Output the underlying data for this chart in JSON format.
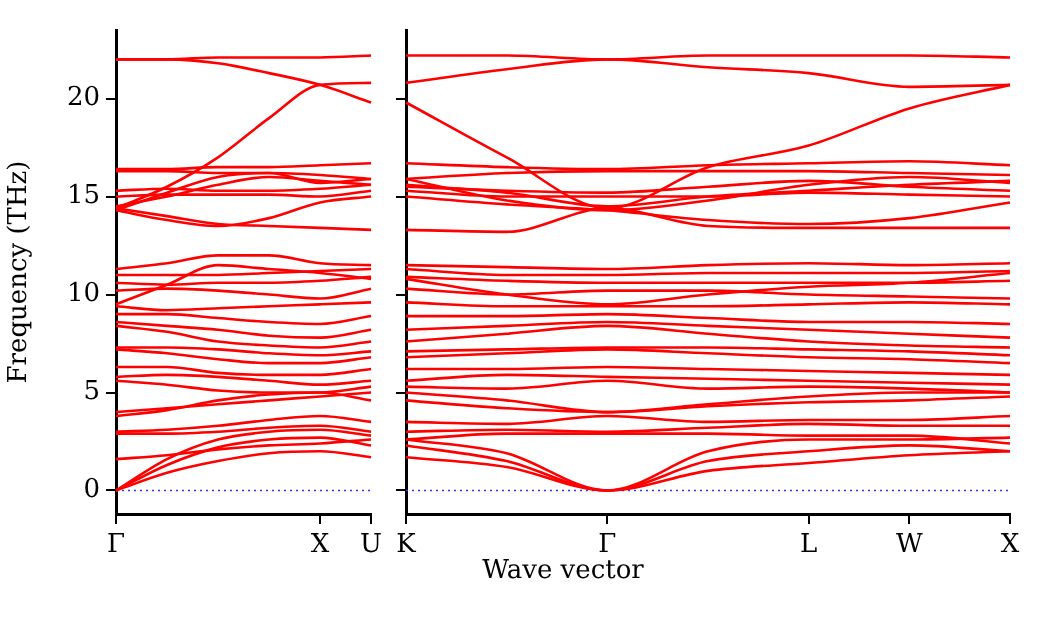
{
  "chart_data": [
    {
      "type": "line",
      "ylabel": "Frequency (THz)",
      "categories": [
        "Γ",
        null,
        null,
        null,
        "X",
        "U"
      ],
      "ylim": [
        -1.2,
        23.5
      ],
      "yticks": [
        0,
        5,
        10,
        15,
        20
      ],
      "marker": "none",
      "line_style": "solid",
      "ref_lines": [
        {
          "axis": "y",
          "value": 0,
          "color": "#3333ff",
          "line_style": "dotted"
        }
      ],
      "series": [
        {
          "color": "#ff0000",
          "values": [
            0,
            0.9,
            1.5,
            1.9,
            2.0,
            1.7
          ]
        },
        {
          "color": "#ff0000",
          "values": [
            0,
            1.3,
            2.2,
            2.6,
            2.7,
            2.3
          ]
        },
        {
          "color": "#ff0000",
          "values": [
            0,
            1.6,
            2.6,
            3.0,
            3.1,
            2.8
          ]
        },
        {
          "color": "#ff0000",
          "values": [
            1.6,
            1.8,
            2.1,
            2.3,
            2.4,
            2.6
          ]
        },
        {
          "color": "#ff0000",
          "values": [
            2.9,
            2.9,
            3.0,
            3.2,
            3.3,
            3.0
          ]
        },
        {
          "color": "#ff0000",
          "values": [
            3.0,
            3.1,
            3.3,
            3.6,
            3.8,
            3.5
          ]
        },
        {
          "color": "#ff0000",
          "values": [
            3.8,
            4.1,
            4.6,
            4.9,
            5.0,
            4.6
          ]
        },
        {
          "color": "#ff0000",
          "values": [
            4.0,
            4.2,
            4.4,
            4.6,
            4.8,
            5.0
          ]
        },
        {
          "color": "#ff0000",
          "values": [
            5.6,
            5.4,
            5.1,
            5.0,
            5.0,
            5.3
          ]
        },
        {
          "color": "#ff0000",
          "values": [
            5.8,
            5.9,
            5.8,
            5.6,
            5.4,
            5.6
          ]
        },
        {
          "color": "#ff0000",
          "values": [
            6.3,
            6.3,
            6.0,
            5.9,
            5.9,
            6.2
          ]
        },
        {
          "color": "#ff0000",
          "values": [
            7.2,
            7.0,
            6.7,
            6.5,
            6.5,
            6.8
          ]
        },
        {
          "color": "#ff0000",
          "values": [
            7.3,
            7.3,
            7.2,
            7.0,
            6.9,
            7.1
          ]
        },
        {
          "color": "#ff0000",
          "values": [
            8.4,
            8.1,
            7.6,
            7.4,
            7.3,
            7.6
          ]
        },
        {
          "color": "#ff0000",
          "values": [
            8.6,
            8.4,
            8.2,
            7.9,
            7.8,
            8.2
          ]
        },
        {
          "color": "#ff0000",
          "values": [
            9.0,
            9.0,
            8.8,
            8.6,
            8.5,
            8.9
          ]
        },
        {
          "color": "#ff0000",
          "values": [
            9.4,
            9.2,
            9.3,
            9.4,
            9.5,
            9.6
          ]
        },
        {
          "color": "#ff0000",
          "values": [
            10.2,
            10.3,
            10.2,
            10.0,
            9.8,
            10.3
          ]
        },
        {
          "color": "#ff0000",
          "values": [
            10.6,
            10.5,
            10.6,
            10.6,
            10.7,
            10.9
          ]
        },
        {
          "color": "#ff0000",
          "values": [
            11.0,
            11.0,
            11.0,
            11.1,
            11.2,
            11.3
          ]
        },
        {
          "color": "#ff0000",
          "values": [
            11.3,
            11.6,
            12.0,
            12.0,
            11.6,
            11.5
          ]
        },
        {
          "color": "#ff0000",
          "values": [
            9.5,
            10.5,
            11.5,
            11.3,
            11.1,
            10.8
          ]
        },
        {
          "color": "#ff0000",
          "values": [
            14.4,
            14.0,
            13.6,
            13.5,
            13.4,
            13.3
          ]
        },
        {
          "color": "#ff0000",
          "values": [
            14.3,
            13.8,
            13.5,
            13.9,
            14.7,
            15.0
          ]
        },
        {
          "color": "#ff0000",
          "values": [
            14.5,
            15.0,
            15.6,
            16.0,
            15.8,
            15.6
          ]
        },
        {
          "color": "#ff0000",
          "values": [
            15.0,
            15.1,
            15.1,
            15.1,
            15.0,
            15.3
          ]
        },
        {
          "color": "#ff0000",
          "values": [
            15.3,
            15.4,
            15.3,
            15.3,
            15.4,
            15.6
          ]
        },
        {
          "color": "#ff0000",
          "values": [
            14.3,
            15.2,
            16.0,
            16.2,
            15.7,
            15.9
          ]
        },
        {
          "color": "#ff0000",
          "values": [
            16.3,
            16.3,
            16.2,
            16.2,
            16.1,
            15.9
          ]
        },
        {
          "color": "#ff0000",
          "values": [
            16.4,
            16.4,
            16.5,
            16.5,
            16.6,
            16.7
          ]
        },
        {
          "color": "#ff0000",
          "values": [
            14.4,
            15.5,
            17.0,
            19.0,
            20.7,
            20.8
          ]
        },
        {
          "color": "#ff0000",
          "values": [
            22.0,
            22.0,
            21.8,
            21.3,
            20.7,
            19.8
          ]
        },
        {
          "color": "#ff0000",
          "values": [
            22.0,
            22.0,
            22.1,
            22.1,
            22.1,
            22.2
          ]
        }
      ]
    },
    {
      "type": "line",
      "xlabel": "Wave vector",
      "categories": [
        "K",
        null,
        "Γ",
        null,
        "L",
        "W",
        "X"
      ],
      "ylim": [
        -1.2,
        23.5
      ],
      "yticks": [
        0,
        5,
        10,
        15,
        20
      ],
      "tick_labels": "x",
      "marker": "none",
      "line_style": "solid",
      "ref_lines": [
        {
          "axis": "y",
          "value": 0,
          "color": "#3333ff",
          "line_style": "dotted"
        }
      ],
      "series": [
        {
          "color": "#ff0000",
          "values": [
            1.7,
            1.2,
            0,
            1.0,
            1.4,
            1.8,
            2.0
          ]
        },
        {
          "color": "#ff0000",
          "values": [
            2.3,
            1.5,
            0,
            1.5,
            2.0,
            2.3,
            2.0
          ]
        },
        {
          "color": "#ff0000",
          "values": [
            2.6,
            1.9,
            0,
            2.0,
            2.6,
            2.6,
            2.7
          ]
        },
        {
          "color": "#ff0000",
          "values": [
            2.6,
            2.9,
            2.9,
            2.9,
            2.8,
            2.8,
            2.4
          ]
        },
        {
          "color": "#ff0000",
          "values": [
            3.0,
            3.1,
            3.0,
            3.2,
            3.4,
            3.3,
            3.3
          ]
        },
        {
          "color": "#ff0000",
          "values": [
            3.5,
            3.4,
            3.8,
            3.5,
            3.6,
            3.6,
            3.8
          ]
        },
        {
          "color": "#ff0000",
          "values": [
            4.6,
            4.2,
            4.0,
            4.3,
            4.5,
            4.6,
            4.8
          ]
        },
        {
          "color": "#ff0000",
          "values": [
            5.0,
            4.6,
            4.0,
            4.4,
            4.8,
            5.0,
            5.0
          ]
        },
        {
          "color": "#ff0000",
          "values": [
            5.3,
            5.2,
            5.6,
            5.2,
            5.3,
            5.2,
            5.0
          ]
        },
        {
          "color": "#ff0000",
          "values": [
            5.6,
            5.9,
            5.8,
            5.7,
            5.6,
            5.5,
            5.4
          ]
        },
        {
          "color": "#ff0000",
          "values": [
            6.2,
            6.2,
            6.3,
            6.2,
            6.1,
            6.0,
            5.9
          ]
        },
        {
          "color": "#ff0000",
          "values": [
            6.8,
            7.0,
            7.2,
            7.0,
            6.8,
            6.7,
            6.5
          ]
        },
        {
          "color": "#ff0000",
          "values": [
            7.1,
            7.2,
            7.3,
            7.3,
            7.2,
            7.1,
            6.9
          ]
        },
        {
          "color": "#ff0000",
          "values": [
            7.6,
            8.0,
            8.4,
            8.0,
            7.6,
            7.4,
            7.3
          ]
        },
        {
          "color": "#ff0000",
          "values": [
            8.2,
            8.4,
            8.6,
            8.4,
            8.2,
            8.0,
            7.8
          ]
        },
        {
          "color": "#ff0000",
          "values": [
            8.9,
            8.9,
            9.0,
            8.8,
            8.6,
            8.6,
            8.5
          ]
        },
        {
          "color": "#ff0000",
          "values": [
            9.6,
            9.4,
            9.4,
            9.4,
            9.5,
            9.6,
            9.5
          ]
        },
        {
          "color": "#ff0000",
          "values": [
            10.3,
            10.0,
            10.2,
            10.2,
            10.0,
            9.9,
            9.8
          ]
        },
        {
          "color": "#ff0000",
          "values": [
            10.9,
            10.7,
            10.6,
            10.6,
            10.6,
            10.6,
            10.7
          ]
        },
        {
          "color": "#ff0000",
          "values": [
            11.3,
            11.0,
            11.0,
            11.1,
            11.1,
            11.1,
            11.2
          ]
        },
        {
          "color": "#ff0000",
          "values": [
            11.5,
            11.4,
            11.3,
            11.5,
            11.6,
            11.5,
            11.6
          ]
        },
        {
          "color": "#ff0000",
          "values": [
            10.8,
            10.0,
            9.5,
            10.0,
            10.4,
            10.6,
            11.1
          ]
        },
        {
          "color": "#ff0000",
          "values": [
            13.3,
            13.2,
            14.4,
            13.5,
            13.4,
            13.4,
            13.4
          ]
        },
        {
          "color": "#ff0000",
          "values": [
            15.0,
            14.6,
            14.3,
            13.8,
            13.6,
            13.9,
            14.7
          ]
        },
        {
          "color": "#ff0000",
          "values": [
            15.6,
            15.2,
            14.5,
            15.0,
            15.3,
            15.6,
            15.8
          ]
        },
        {
          "color": "#ff0000",
          "values": [
            15.3,
            15.0,
            15.0,
            15.0,
            15.2,
            15.1,
            15.0
          ]
        },
        {
          "color": "#ff0000",
          "values": [
            15.5,
            15.3,
            15.2,
            15.5,
            15.8,
            15.5,
            15.3
          ]
        },
        {
          "color": "#ff0000",
          "values": [
            15.9,
            14.8,
            14.3,
            14.8,
            15.6,
            16.0,
            15.7
          ]
        },
        {
          "color": "#ff0000",
          "values": [
            15.9,
            16.2,
            16.3,
            16.3,
            16.3,
            16.2,
            16.1
          ]
        },
        {
          "color": "#ff0000",
          "values": [
            16.7,
            16.5,
            16.4,
            16.6,
            16.7,
            16.8,
            16.6
          ]
        },
        {
          "color": "#ff0000",
          "values": [
            19.8,
            17.0,
            14.4,
            16.5,
            17.6,
            19.5,
            20.7
          ]
        },
        {
          "color": "#ff0000",
          "values": [
            20.8,
            21.5,
            22.0,
            21.6,
            21.3,
            20.6,
            20.7
          ]
        },
        {
          "color": "#ff0000",
          "values": [
            22.2,
            22.2,
            22.0,
            22.2,
            22.2,
            22.2,
            22.1
          ]
        }
      ]
    }
  ]
}
